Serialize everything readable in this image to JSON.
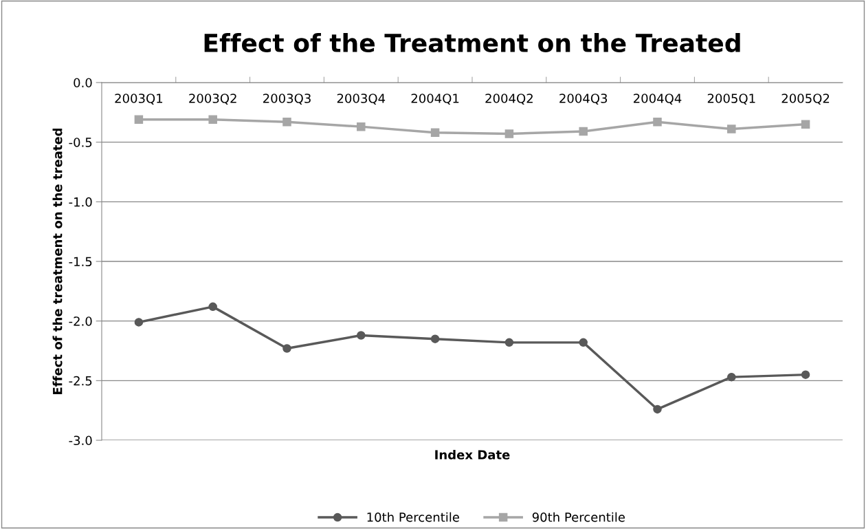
{
  "chart_data": {
    "type": "line",
    "title": "Effect of the Treatment on the Treated",
    "xlabel": "Index Date",
    "ylabel": "Effect of the treatment on the treated",
    "categories": [
      "2003Q1",
      "2003Q2",
      "2003Q3",
      "2003Q4",
      "2004Q1",
      "2004Q2",
      "2004Q3",
      "2004Q4",
      "2005Q1",
      "2005Q2"
    ],
    "series": [
      {
        "name": "10th Percentile",
        "color": "#595959",
        "marker": "circle",
        "values": [
          -2.01,
          -1.88,
          -2.23,
          -2.12,
          -2.15,
          -2.18,
          -2.18,
          -2.74,
          -2.47,
          -2.45
        ]
      },
      {
        "name": "90th Percentile",
        "color": "#a6a6a6",
        "marker": "square",
        "values": [
          -0.31,
          -0.31,
          -0.33,
          -0.37,
          -0.42,
          -0.43,
          -0.41,
          -0.33,
          -0.39,
          -0.35
        ]
      }
    ],
    "ylim": [
      -3.0,
      0.0
    ],
    "yticks": [
      {
        "value": 0,
        "label": "0.0"
      },
      {
        "value": -0.5,
        "label": "-0.5"
      },
      {
        "value": -1,
        "label": "-1.0"
      },
      {
        "value": -1.5,
        "label": "-1.5"
      },
      {
        "value": -2,
        "label": "-2.0"
      },
      {
        "value": -2.5,
        "label": "-2.5"
      },
      {
        "value": -3,
        "label": "-3.0"
      }
    ],
    "grid": "y",
    "legend": "bottom",
    "line_style": "solid"
  }
}
